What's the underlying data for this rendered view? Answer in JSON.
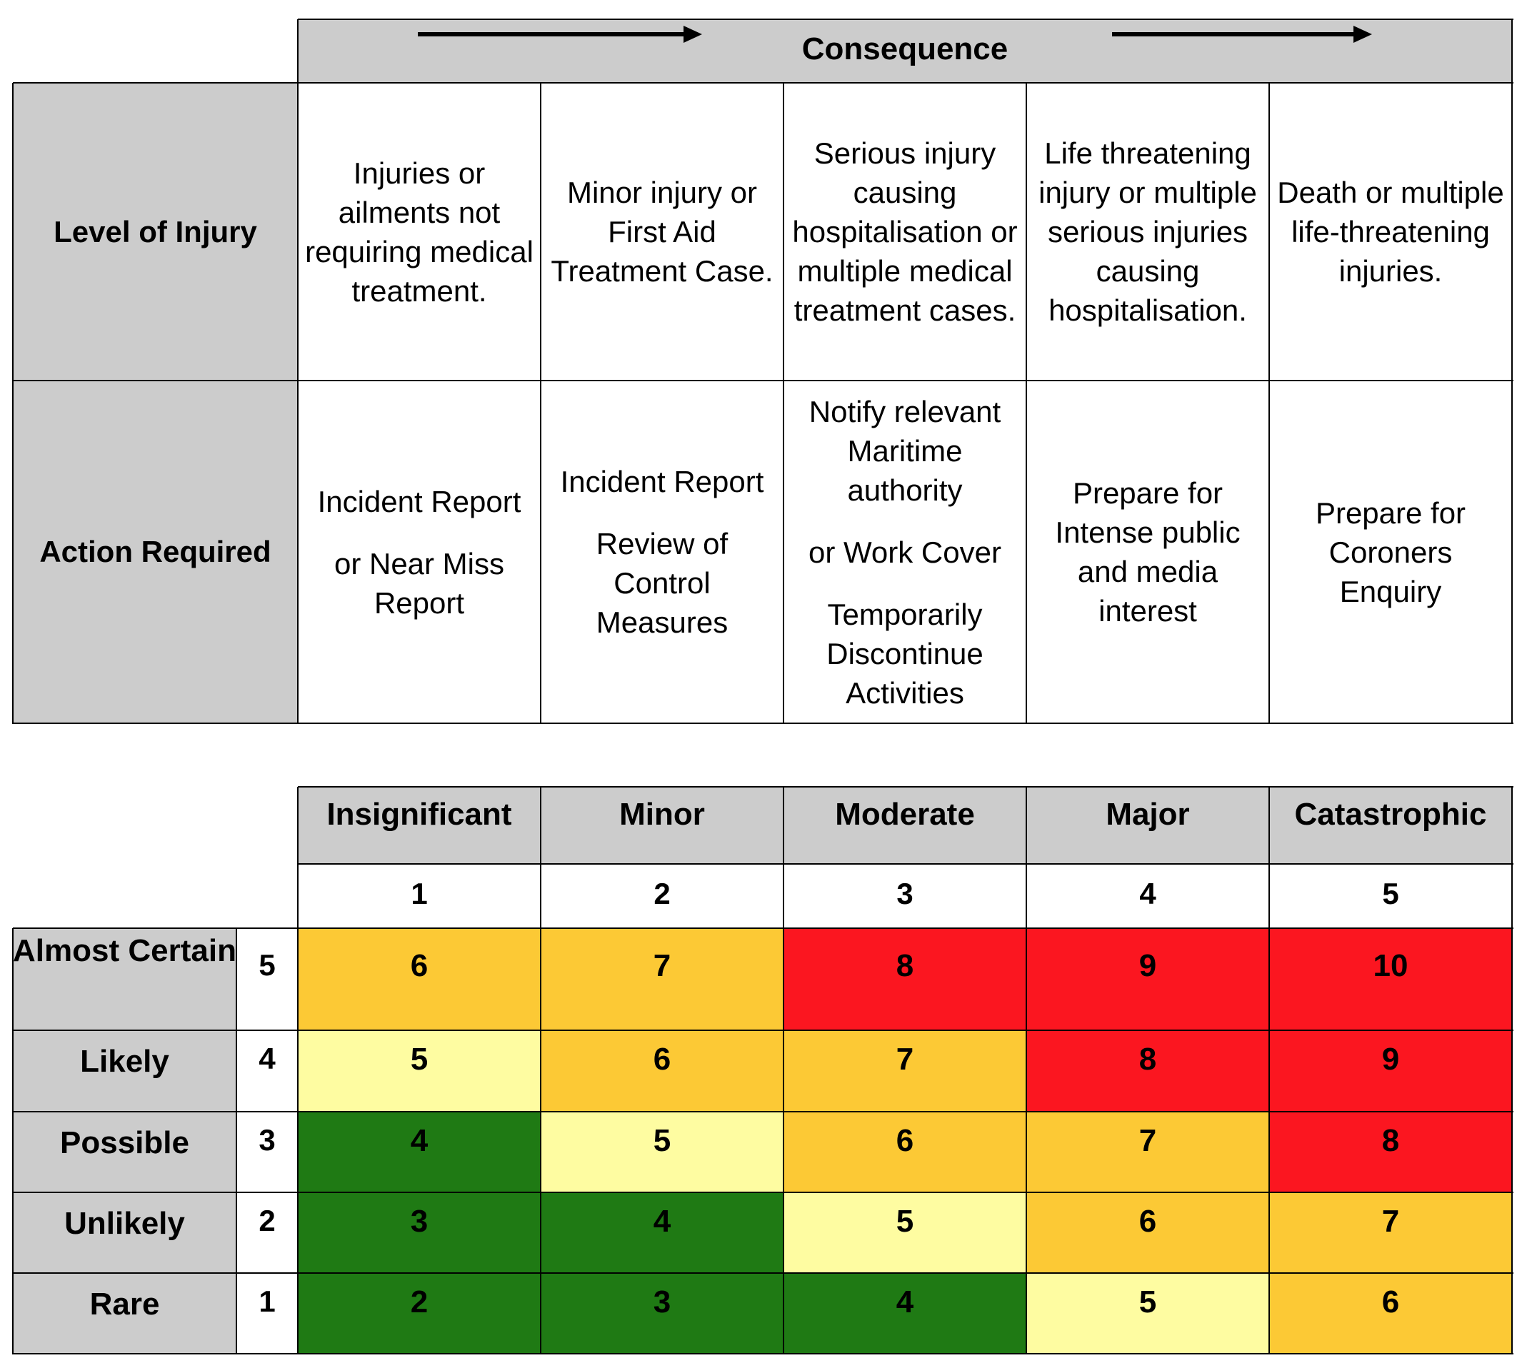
{
  "consequence": {
    "title": "Consequence"
  },
  "level_of_injury": {
    "label": "Level of Injury",
    "descriptions": [
      "Injuries or ailments not requiring medical treatment.",
      "Minor injury or First Aid Treatment Case.",
      "Serious injury causing hospitalisation or multiple medical treatment cases.",
      "Life threatening injury or multiple serious injuries causing hospitalisation.",
      "Death or multiple life-threatening injuries."
    ]
  },
  "action_required": {
    "label": "Action Required",
    "actions": [
      [
        "Incident Report",
        "or Near Miss Report"
      ],
      [
        "Incident Report",
        "Review of Control Measures"
      ],
      [
        "Notify relevant Maritime authority",
        "or Work Cover",
        "Temporarily Discontinue Activities"
      ],
      [
        "Prepare for Intense public and media interest"
      ],
      [
        "Prepare for Coroners Enquiry"
      ]
    ]
  },
  "severity": {
    "labels": [
      "Insignificant",
      "Minor",
      "Moderate",
      "Major",
      "Catastrophic"
    ],
    "numbers": [
      "1",
      "2",
      "3",
      "4",
      "5"
    ]
  },
  "likelihood": [
    {
      "label": "Almost Certain",
      "number": "5",
      "scores": [
        "6",
        "7",
        "8",
        "9",
        "10"
      ]
    },
    {
      "label": "Likely",
      "number": "4",
      "scores": [
        "5",
        "6",
        "7",
        "8",
        "9"
      ]
    },
    {
      "label": "Possible",
      "number": "3",
      "scores": [
        "4",
        "5",
        "6",
        "7",
        "8"
      ]
    },
    {
      "label": "Unlikely",
      "number": "2",
      "scores": [
        "3",
        "4",
        "5",
        "6",
        "7"
      ]
    },
    {
      "label": "Rare",
      "number": "1",
      "scores": [
        "2",
        "3",
        "4",
        "5",
        "6"
      ]
    }
  ],
  "colors": {
    "header_gray": "#cccccc",
    "low_green": "#1f7a14",
    "medium_yellow": "#fefca1",
    "high_orange": "#fcc935",
    "extreme_red": "#fb1620",
    "grid": "#000000"
  }
}
